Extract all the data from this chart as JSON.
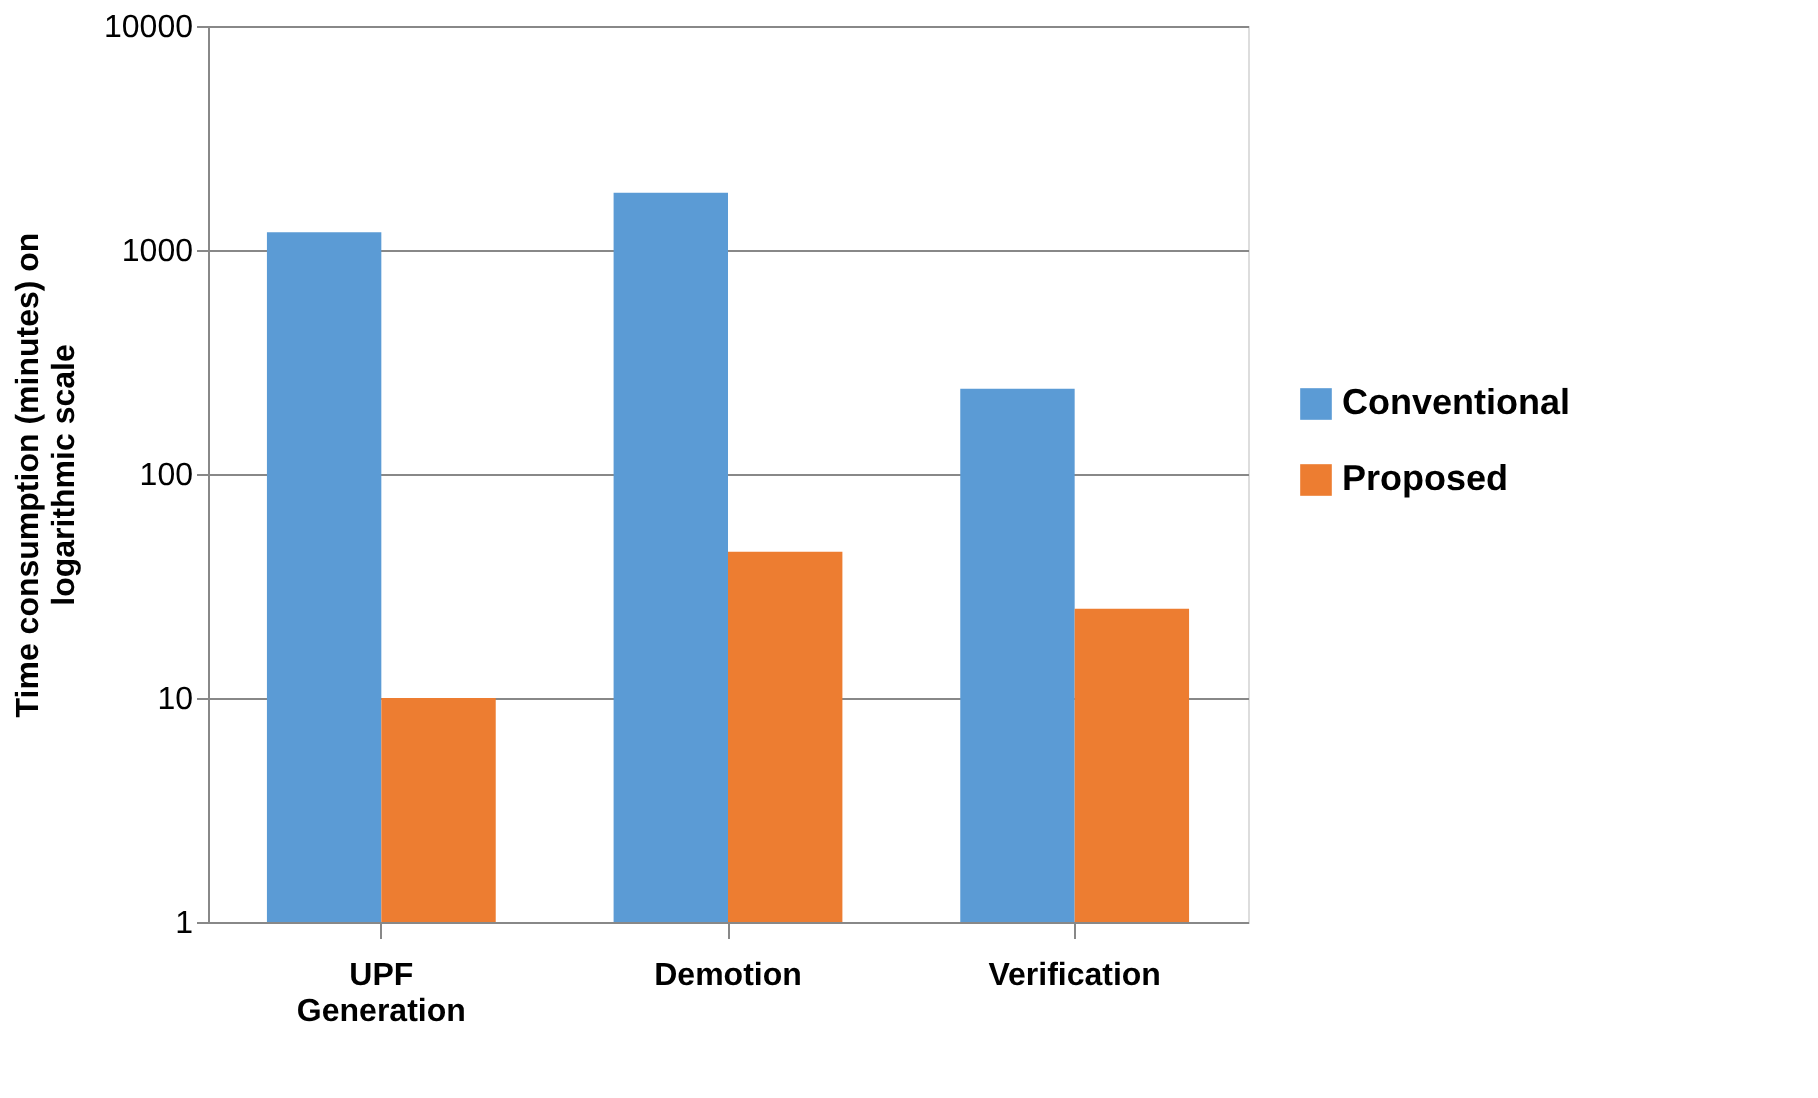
{
  "chart_data": {
    "type": "bar",
    "ylabel": "Time consumption  (minutes) on logarithmic scale",
    "categories": [
      "UPF Generation",
      "Demotion",
      "Verification"
    ],
    "series": [
      {
        "name": "Conventional",
        "color": "#5b9bd5",
        "values": [
          1200,
          1800,
          240
        ]
      },
      {
        "name": "Proposed",
        "color": "#ed7d31",
        "values": [
          10,
          45,
          25
        ]
      }
    ],
    "log": true,
    "ylim": [
      1,
      10000
    ],
    "yticks": [
      1,
      10,
      100,
      1000,
      10000
    ],
    "grid": "y",
    "legend": "right"
  }
}
